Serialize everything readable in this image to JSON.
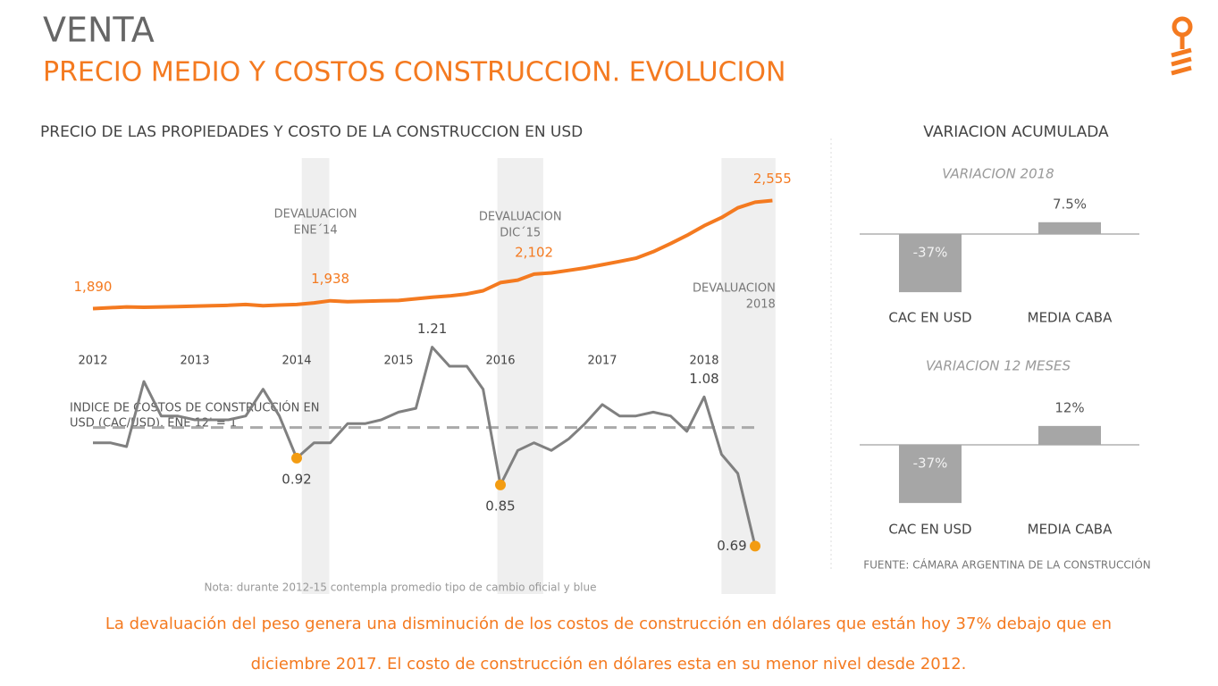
{
  "header": {
    "title": "VENTA",
    "subtitle": "PRECIO MEDIO Y COSTOS CONSTRUCCION. EVOLUCION"
  },
  "chart_data": [
    {
      "type": "line",
      "title": "PRECIO DE LAS PROPIEDADES Y COSTO DE LA CONSTRUCCION EN USD",
      "color": "#f47a20",
      "x": [
        2012,
        2012.17,
        2012.33,
        2012.5,
        2012.67,
        2012.83,
        2013,
        2013.17,
        2013.33,
        2013.5,
        2013.67,
        2013.83,
        2014,
        2014.17,
        2014.33,
        2014.5,
        2014.67,
        2014.83,
        2015,
        2015.17,
        2015.33,
        2015.5,
        2015.67,
        2015.83,
        2016,
        2016.17,
        2016.33,
        2016.5,
        2016.67,
        2016.83,
        2017,
        2017.17,
        2017.33,
        2017.5,
        2017.67,
        2017.83,
        2018,
        2018.17,
        2018.33,
        2018.5,
        2018.67
      ],
      "values": [
        1890,
        1895,
        1900,
        1898,
        1900,
        1902,
        1905,
        1908,
        1910,
        1915,
        1908,
        1912,
        1915,
        1925,
        1938,
        1932,
        1935,
        1938,
        1940,
        1950,
        1960,
        1968,
        1980,
        2000,
        2050,
        2065,
        2102,
        2110,
        2125,
        2140,
        2160,
        2180,
        2200,
        2240,
        2290,
        2340,
        2400,
        2450,
        2510,
        2545,
        2555
      ],
      "value_labels": [
        "1,890",
        null,
        null,
        null,
        null,
        null,
        null,
        null,
        null,
        null,
        null,
        null,
        null,
        null,
        "1,938",
        null,
        null,
        null,
        null,
        null,
        null,
        null,
        null,
        null,
        null,
        null,
        "2,102",
        null,
        null,
        null,
        null,
        null,
        null,
        null,
        null,
        null,
        null,
        null,
        null,
        null,
        "2,555"
      ],
      "xlim": [
        2012,
        2018.7
      ],
      "xticks": [
        2012,
        2013,
        2014,
        2015,
        2016,
        2017,
        2018
      ],
      "ylim": [
        1700,
        2800
      ],
      "bands": [
        {
          "label": [
            "DEVALUACION",
            "ENE´14"
          ],
          "x": [
            2014.05,
            2014.32
          ]
        },
        {
          "label": [
            "DEVALUACION",
            "DIC´15"
          ],
          "x": [
            2015.97,
            2016.42
          ]
        },
        {
          "label": [
            "DEVALUACION",
            "2018"
          ],
          "x": [
            2018.17,
            2018.7
          ]
        }
      ]
    },
    {
      "type": "line",
      "title": [
        "INDICE DE COSTOS DE CONSTRUCCIÓN EN",
        "USD (CAC/USD). ENE 12' = 1"
      ],
      "color": "#808080",
      "highlight_color": "#f39c12",
      "reference": 1,
      "x": [
        2012,
        2012.17,
        2012.33,
        2012.5,
        2012.67,
        2012.83,
        2013,
        2013.17,
        2013.33,
        2013.5,
        2013.67,
        2013.83,
        2014,
        2014.17,
        2014.33,
        2014.5,
        2014.67,
        2014.83,
        2015,
        2015.17,
        2015.33,
        2015.5,
        2015.67,
        2015.83,
        2016,
        2016.17,
        2016.33,
        2016.5,
        2016.67,
        2016.83,
        2017,
        2017.17,
        2017.33,
        2017.5,
        2017.67,
        2017.83,
        2018,
        2018.17,
        2018.33,
        2018.5
      ],
      "values": [
        0.96,
        0.96,
        0.95,
        1.12,
        1.03,
        1.03,
        1.02,
        1.02,
        1.02,
        1.03,
        1.1,
        1.03,
        0.92,
        0.96,
        0.96,
        1.01,
        1.01,
        1.02,
        1.04,
        1.05,
        1.21,
        1.16,
        1.16,
        1.1,
        0.85,
        0.94,
        0.96,
        0.94,
        0.97,
        1.01,
        1.06,
        1.03,
        1.03,
        1.04,
        1.03,
        0.99,
        1.08,
        0.93,
        0.88,
        0.69
      ],
      "value_labels": [
        null,
        null,
        null,
        null,
        null,
        null,
        null,
        null,
        null,
        null,
        null,
        null,
        "0.92",
        null,
        null,
        null,
        null,
        null,
        null,
        null,
        "1.21",
        null,
        null,
        null,
        "0.85",
        null,
        null,
        null,
        null,
        null,
        null,
        null,
        null,
        null,
        null,
        null,
        "1.08",
        null,
        null,
        "0.69"
      ],
      "xlim": [
        2012,
        2018.7
      ],
      "ylim": [
        0.6,
        1.3
      ],
      "note": "Nota: durante 2012-15 contempla promedio tipo de cambio oficial y blue"
    },
    {
      "type": "bar",
      "title": "VARIACION 2018",
      "categories": [
        "CAC EN USD",
        "MEDIA CABA"
      ],
      "values": [
        -37,
        7.5
      ],
      "value_labels": [
        "-37%",
        "7.5%"
      ],
      "color": "#a6a6a6",
      "ylim": [
        -40,
        15
      ]
    },
    {
      "type": "bar",
      "title": "VARIACION 12 MESES",
      "categories": [
        "CAC EN USD",
        "MEDIA CABA"
      ],
      "values": [
        -37,
        12
      ],
      "value_labels": [
        "-37%",
        "12%"
      ],
      "color": "#a6a6a6",
      "ylim": [
        -40,
        15
      ]
    }
  ],
  "side_title": "VARIACION ACUMULADA",
  "source": "FUENTE: CÁMARA ARGENTINA DE LA CONSTRUCCIÓN",
  "footer": [
    "La devaluación del peso genera una disminución de los costos de construcción en dólares que están hoy 37% debajo que en",
    "diciembre 2017. El costo de construcción en dólares esta en su menor nivel desde 2012."
  ]
}
